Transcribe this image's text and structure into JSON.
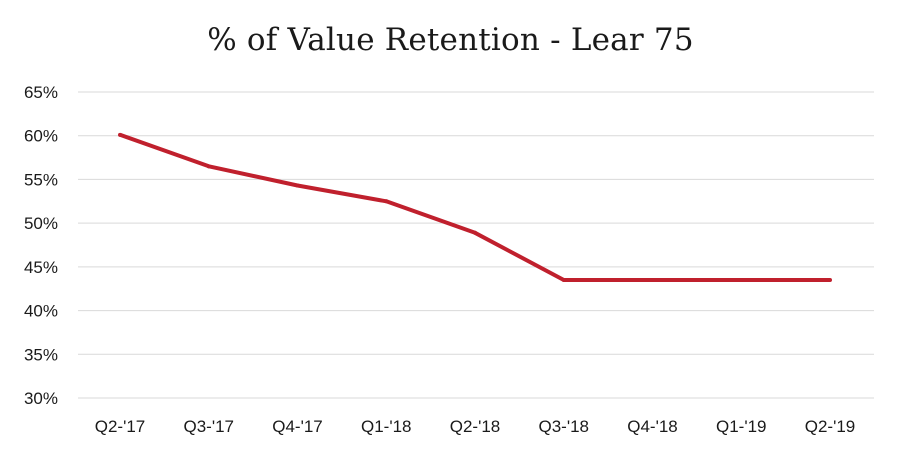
{
  "chart_data": {
    "type": "line",
    "title": "% of Value Retention - Lear 75",
    "xlabel": "",
    "ylabel": "",
    "categories": [
      "Q2-'17",
      "Q3-'17",
      "Q4-'17",
      "Q1-'18",
      "Q2-'18",
      "Q3-'18",
      "Q4-'18",
      "Q1-'19",
      "Q2-'19"
    ],
    "series": [
      {
        "values": [
          60.1,
          56.5,
          54.3,
          52.5,
          48.9,
          43.5,
          43.5,
          43.5,
          43.5
        ],
        "color": "#c0202d"
      }
    ],
    "ylim": [
      30,
      65
    ],
    "yticks": [
      30,
      35,
      40,
      45,
      50,
      55,
      60,
      65
    ],
    "ytick_labels": [
      "30%",
      "35%",
      "40%",
      "45%",
      "50%",
      "55%",
      "60%",
      "65%"
    ],
    "grid": true,
    "legend": "none"
  }
}
